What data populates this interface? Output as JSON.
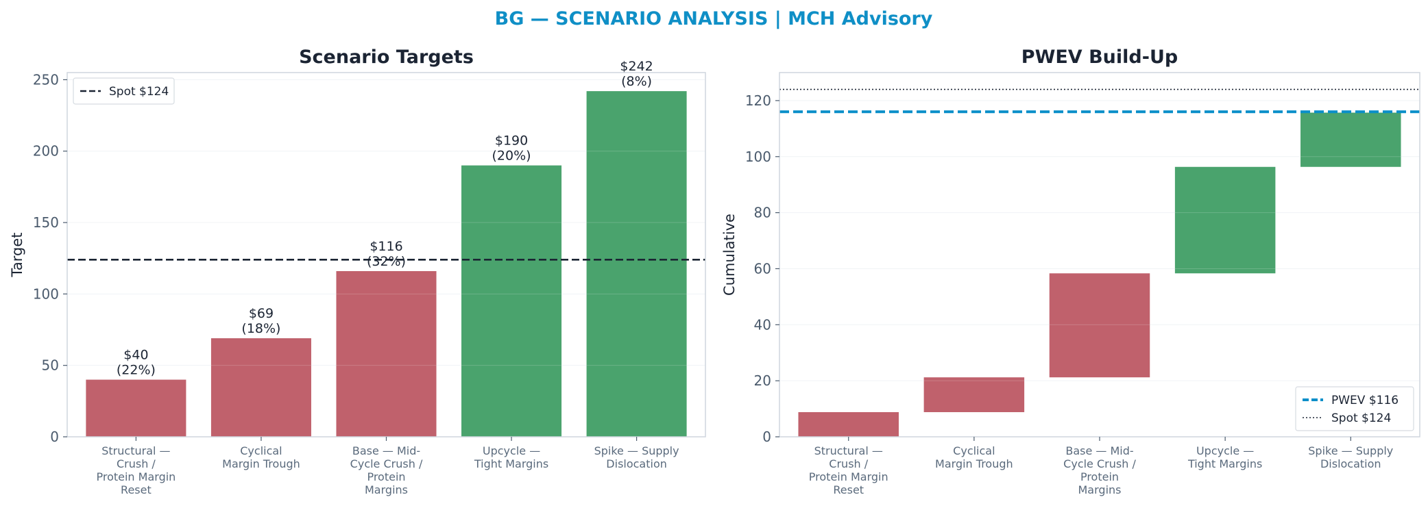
{
  "suptitle": "BG — SCENARIO ANALYSIS | MCH Advisory",
  "colors": {
    "title": "#0f8fc6",
    "bear": "#c0616c",
    "bull": "#4aa36d",
    "spot": "#1b2433",
    "pwev": "#0a8fc9",
    "text": "#1b2433",
    "axis": "#cfd6de",
    "grid": "#eef1f4"
  },
  "chart_data": [
    {
      "type": "bar",
      "title": "Scenario Targets",
      "ylabel": "Target",
      "xlabel": "",
      "ylim": [
        0,
        255
      ],
      "yticks": [
        0,
        50,
        100,
        150,
        200,
        250
      ],
      "grid": true,
      "categories": [
        [
          "Structural —",
          "Crush /",
          "Protein Margin",
          "Reset"
        ],
        [
          "Cyclical",
          "Margin Trough"
        ],
        [
          "Base — Mid-",
          "Cycle Crush /",
          "Protein",
          "Margins"
        ],
        [
          "Upcycle —",
          "Tight Margins"
        ],
        [
          "Spike — Supply",
          "Dislocation"
        ]
      ],
      "values": [
        40,
        69,
        116,
        190,
        242
      ],
      "probabilities": [
        "22%",
        "18%",
        "32%",
        "20%",
        "8%"
      ],
      "data_labels": [
        [
          "$40",
          "(22%)"
        ],
        [
          "$69",
          "(18%)"
        ],
        [
          "$116",
          "(32%)"
        ],
        [
          "$190",
          "(20%)"
        ],
        [
          "$242",
          "(8%)"
        ]
      ],
      "bar_colors": [
        "bear",
        "bear",
        "bear",
        "bull",
        "bull"
      ],
      "reference_lines": [
        {
          "label": "Spot $124",
          "value": 124,
          "style": "dashed",
          "color": "spot"
        }
      ],
      "legend": {
        "position": "top-left",
        "entries": [
          "Spot $124"
        ]
      }
    },
    {
      "type": "bar",
      "subtype": "waterfall",
      "title": "PWEV Build-Up",
      "ylabel": "Cumulative",
      "xlabel": "",
      "ylim": [
        0,
        130
      ],
      "yticks": [
        0,
        20,
        40,
        60,
        80,
        100,
        120
      ],
      "grid": true,
      "categories": [
        [
          "Structural —",
          "Crush /",
          "Protein Margin",
          "Reset"
        ],
        [
          "Cyclical",
          "Margin Trough"
        ],
        [
          "Base — Mid-",
          "Cycle Crush /",
          "Protein",
          "Margins"
        ],
        [
          "Upcycle —",
          "Tight Margins"
        ],
        [
          "Spike — Supply",
          "Dislocation"
        ]
      ],
      "contributions": [
        8.8,
        12.42,
        37.12,
        38.0,
        19.36
      ],
      "cumulative": [
        8.8,
        21.22,
        58.34,
        96.34,
        115.7
      ],
      "bar_colors": [
        "bear",
        "bear",
        "bear",
        "bull",
        "bull"
      ],
      "reference_lines": [
        {
          "label": "PWEV $116",
          "value": 116,
          "style": "dashed",
          "color": "pwev"
        },
        {
          "label": "Spot $124",
          "value": 124,
          "style": "dotted",
          "color": "spot"
        }
      ],
      "legend": {
        "position": "bottom-right",
        "entries": [
          "PWEV $116",
          "Spot $124"
        ]
      }
    }
  ]
}
